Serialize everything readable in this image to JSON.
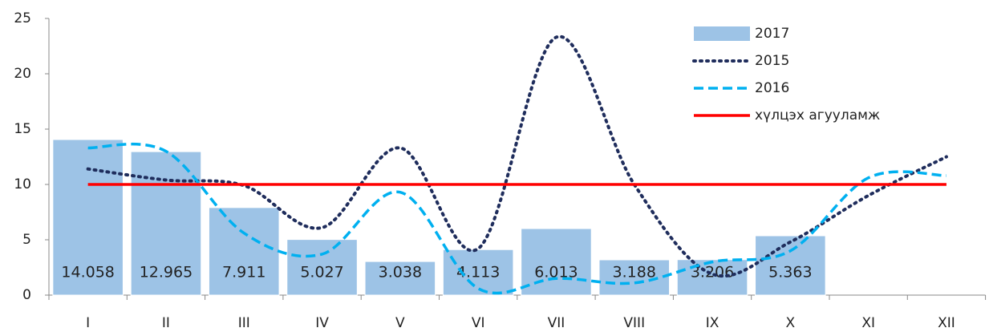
{
  "chart_data": {
    "type": "bar",
    "categories": [
      "I",
      "II",
      "III",
      "IV",
      "V",
      "VI",
      "VII",
      "VIII",
      "IX",
      "X",
      "XI",
      "XII"
    ],
    "series": [
      {
        "name": "2017",
        "type": "bar",
        "color": "#9dc3e6",
        "values": [
          14.058,
          12.965,
          7.911,
          5.027,
          3.038,
          4.113,
          6.013,
          3.188,
          3.206,
          5.363,
          null,
          null
        ]
      },
      {
        "name": "2015",
        "type": "line",
        "style": "dotted",
        "color": "#1f2d5c",
        "values": [
          11.4,
          10.4,
          9.9,
          6.1,
          13.3,
          4.2,
          23.3,
          10.0,
          1.9,
          4.8,
          9.0,
          12.5
        ]
      },
      {
        "name": "2016",
        "type": "line",
        "style": "dashed",
        "color": "#00b0f0",
        "values": [
          13.3,
          13.0,
          5.6,
          3.7,
          9.3,
          0.6,
          1.5,
          1.1,
          3.0,
          4.0,
          10.6,
          10.8
        ]
      },
      {
        "name": "хүлцэх агууламж",
        "type": "line",
        "style": "solid",
        "color": "#ff0000",
        "values": [
          10,
          10,
          10,
          10,
          10,
          10,
          10,
          10,
          10,
          10,
          10,
          10
        ]
      }
    ],
    "ylim": [
      0,
      25
    ],
    "yticks": [
      0,
      5,
      10,
      15,
      20,
      25
    ],
    "grid": false,
    "legend": "top-right"
  }
}
